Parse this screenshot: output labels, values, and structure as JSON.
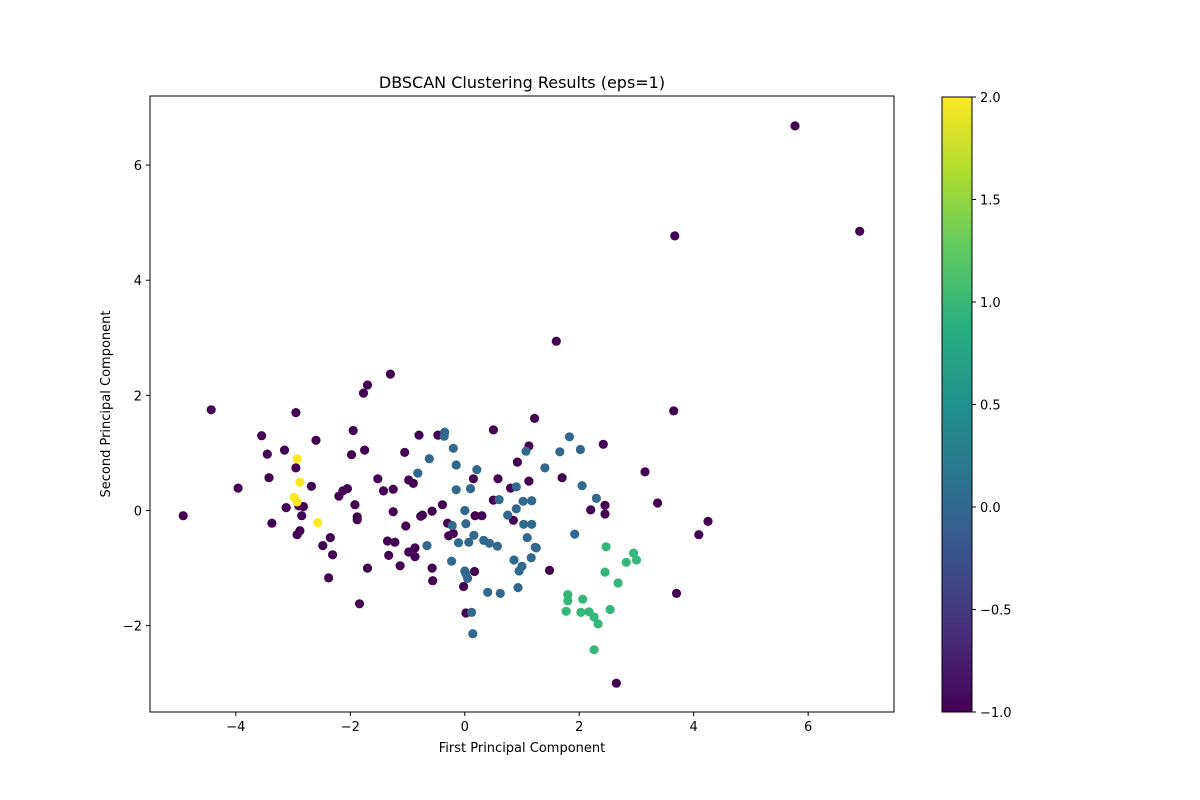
{
  "chart_data": {
    "type": "scatter",
    "title": "DBSCAN Clustering Results (eps=1)",
    "xlabel": "First Principal Component",
    "ylabel": "Second Principal Component",
    "xlim": [
      -5.5,
      7.5
    ],
    "ylim": [
      -3.5,
      7.2
    ],
    "xticks": [
      -4,
      -2,
      0,
      2,
      4,
      6
    ],
    "yticks": [
      -2,
      0,
      2,
      4,
      6
    ],
    "grid": false,
    "colormap": "viridis",
    "colorbar": {
      "range": [
        -1.0,
        2.0
      ],
      "ticks": [
        -1.0,
        -0.5,
        0.0,
        0.5,
        1.0,
        1.5,
        2.0
      ],
      "tick_labels": [
        "−1.0",
        "−0.5",
        "0.0",
        "0.5",
        "1.0",
        "1.5",
        "2.0"
      ]
    },
    "cluster_colors": {
      "-1": "#440154",
      "0": "#31688e",
      "1": "#35b779",
      "2": "#fde725"
    },
    "points": [
      {
        "x": 5.77,
        "y": 6.68,
        "label": -1
      },
      {
        "x": 3.67,
        "y": 4.77,
        "label": -1
      },
      {
        "x": 6.9,
        "y": 4.85,
        "label": -1
      },
      {
        "x": 1.6,
        "y": 2.94,
        "label": -1
      },
      {
        "x": 3.65,
        "y": 1.73,
        "label": -1
      },
      {
        "x": -4.43,
        "y": 1.75,
        "label": -1
      },
      {
        "x": -1.7,
        "y": 2.18,
        "label": -1
      },
      {
        "x": -1.77,
        "y": 2.04,
        "label": -1
      },
      {
        "x": -1.3,
        "y": 2.37,
        "label": -1
      },
      {
        "x": -2.95,
        "y": 1.7,
        "label": -1
      },
      {
        "x": -3.55,
        "y": 1.3,
        "label": -1
      },
      {
        "x": -3.45,
        "y": 0.98,
        "label": -1
      },
      {
        "x": -3.15,
        "y": 1.05,
        "label": -1
      },
      {
        "x": -2.6,
        "y": 1.22,
        "label": -1
      },
      {
        "x": -1.95,
        "y": 1.39,
        "label": -1
      },
      {
        "x": -1.98,
        "y": 0.97,
        "label": -1
      },
      {
        "x": -1.75,
        "y": 1.05,
        "label": -1
      },
      {
        "x": -1.05,
        "y": 1.01,
        "label": -1
      },
      {
        "x": -0.8,
        "y": 1.31,
        "label": -1
      },
      {
        "x": -0.47,
        "y": 1.31,
        "label": -1
      },
      {
        "x": 0.5,
        "y": 1.4,
        "label": -1
      },
      {
        "x": 1.22,
        "y": 1.6,
        "label": -1
      },
      {
        "x": 1.12,
        "y": 1.12,
        "label": -1
      },
      {
        "x": 2.42,
        "y": 1.15,
        "label": -1
      },
      {
        "x": -3.96,
        "y": 0.39,
        "label": -1
      },
      {
        "x": -3.42,
        "y": 0.57,
        "label": -1
      },
      {
        "x": -2.95,
        "y": 0.74,
        "label": -1
      },
      {
        "x": -2.68,
        "y": 0.42,
        "label": -1
      },
      {
        "x": -2.2,
        "y": 0.25,
        "label": -1
      },
      {
        "x": -2.13,
        "y": 0.34,
        "label": -1
      },
      {
        "x": -2.05,
        "y": 0.38,
        "label": -1
      },
      {
        "x": -1.92,
        "y": 0.1,
        "label": -1
      },
      {
        "x": -1.88,
        "y": -0.11,
        "label": -1
      },
      {
        "x": -1.88,
        "y": -0.16,
        "label": -1
      },
      {
        "x": -1.52,
        "y": 0.55,
        "label": -1
      },
      {
        "x": -1.42,
        "y": 0.34,
        "label": -1
      },
      {
        "x": -1.25,
        "y": 0.37,
        "label": -1
      },
      {
        "x": -0.98,
        "y": 0.53,
        "label": -1
      },
      {
        "x": -0.9,
        "y": 0.47,
        "label": -1
      },
      {
        "x": -0.39,
        "y": 0.1,
        "label": -1
      },
      {
        "x": 0.15,
        "y": 0.55,
        "label": -1
      },
      {
        "x": 0.58,
        "y": 0.55,
        "label": -1
      },
      {
        "x": 0.92,
        "y": 0.84,
        "label": -1
      },
      {
        "x": 0.8,
        "y": 0.39,
        "label": -1
      },
      {
        "x": 1.12,
        "y": 0.51,
        "label": -1
      },
      {
        "x": 1.7,
        "y": 0.57,
        "label": -1
      },
      {
        "x": 0.5,
        "y": 0.18,
        "label": -1
      },
      {
        "x": 2.2,
        "y": 0.01,
        "label": -1
      },
      {
        "x": 2.45,
        "y": 0.09,
        "label": -1
      },
      {
        "x": 2.45,
        "y": -0.06,
        "label": -1
      },
      {
        "x": 3.15,
        "y": 0.67,
        "label": -1
      },
      {
        "x": 3.37,
        "y": 0.13,
        "label": -1
      },
      {
        "x": 4.25,
        "y": -0.19,
        "label": -1
      },
      {
        "x": 4.09,
        "y": -0.42,
        "label": -1
      },
      {
        "x": 3.7,
        "y": -1.44,
        "label": -1
      },
      {
        "x": -4.92,
        "y": -0.09,
        "label": -1
      },
      {
        "x": -3.37,
        "y": -0.22,
        "label": -1
      },
      {
        "x": -3.12,
        "y": 0.05,
        "label": -1
      },
      {
        "x": -2.9,
        "y": 0.08,
        "label": -1
      },
      {
        "x": -2.82,
        "y": 0.07,
        "label": -1
      },
      {
        "x": -2.85,
        "y": -0.09,
        "label": -1
      },
      {
        "x": -2.88,
        "y": -0.35,
        "label": -1
      },
      {
        "x": -2.93,
        "y": -0.42,
        "label": -1
      },
      {
        "x": -2.35,
        "y": -0.47,
        "label": -1
      },
      {
        "x": -2.48,
        "y": -0.61,
        "label": -1
      },
      {
        "x": -2.31,
        "y": -0.77,
        "label": -1
      },
      {
        "x": -2.38,
        "y": -1.17,
        "label": -1
      },
      {
        "x": -1.7,
        "y": -1.0,
        "label": -1
      },
      {
        "x": -1.84,
        "y": -1.62,
        "label": -1
      },
      {
        "x": -1.35,
        "y": -0.53,
        "label": -1
      },
      {
        "x": -1.25,
        "y": -0.02,
        "label": -1
      },
      {
        "x": -1.22,
        "y": -0.55,
        "label": -1
      },
      {
        "x": -1.33,
        "y": -0.78,
        "label": -1
      },
      {
        "x": -1.13,
        "y": -0.96,
        "label": -1
      },
      {
        "x": -1.03,
        "y": -0.27,
        "label": -1
      },
      {
        "x": -0.98,
        "y": -0.72,
        "label": -1
      },
      {
        "x": -0.87,
        "y": -0.65,
        "label": -1
      },
      {
        "x": -0.87,
        "y": -0.8,
        "label": -1
      },
      {
        "x": -0.77,
        "y": -0.1,
        "label": -1
      },
      {
        "x": -0.74,
        "y": -0.08,
        "label": -1
      },
      {
        "x": -0.57,
        "y": -0.01,
        "label": -1
      },
      {
        "x": -0.57,
        "y": -1.0,
        "label": -1
      },
      {
        "x": -0.56,
        "y": -1.22,
        "label": -1
      },
      {
        "x": -0.3,
        "y": -0.22,
        "label": -1
      },
      {
        "x": -0.28,
        "y": -0.44,
        "label": -1
      },
      {
        "x": -0.2,
        "y": -0.4,
        "label": -1
      },
      {
        "x": -0.02,
        "y": -1.32,
        "label": -1
      },
      {
        "x": 0.02,
        "y": -1.78,
        "label": -1
      },
      {
        "x": 0.18,
        "y": -0.09,
        "label": -1
      },
      {
        "x": 0.3,
        "y": -0.09,
        "label": -1
      },
      {
        "x": 0.17,
        "y": -1.06,
        "label": -1
      },
      {
        "x": 0.85,
        "y": -0.17,
        "label": -1
      },
      {
        "x": 1.48,
        "y": -1.04,
        "label": -1
      },
      {
        "x": 2.65,
        "y": -3.0,
        "label": -1
      },
      {
        "x": -0.35,
        "y": 1.36,
        "label": 0
      },
      {
        "x": -0.36,
        "y": 1.29,
        "label": 0
      },
      {
        "x": -0.2,
        "y": 1.08,
        "label": 0
      },
      {
        "x": -0.62,
        "y": 0.9,
        "label": 0
      },
      {
        "x": -0.82,
        "y": 0.65,
        "label": 0
      },
      {
        "x": -0.15,
        "y": 0.79,
        "label": 0
      },
      {
        "x": 0.21,
        "y": 0.71,
        "label": 0
      },
      {
        "x": 0.1,
        "y": 0.38,
        "label": 0
      },
      {
        "x": -0.15,
        "y": 0.36,
        "label": 0
      },
      {
        "x": 0.6,
        "y": 0.19,
        "label": 0
      },
      {
        "x": 0.9,
        "y": 0.41,
        "label": 0
      },
      {
        "x": 1.07,
        "y": 1.03,
        "label": 0
      },
      {
        "x": 1.4,
        "y": 0.74,
        "label": 0
      },
      {
        "x": 1.66,
        "y": 1.02,
        "label": 0
      },
      {
        "x": 1.83,
        "y": 1.28,
        "label": 0
      },
      {
        "x": 2.02,
        "y": 1.06,
        "label": 0
      },
      {
        "x": 2.05,
        "y": 0.43,
        "label": 0
      },
      {
        "x": 2.3,
        "y": 0.21,
        "label": 0
      },
      {
        "x": 1.02,
        "y": 0.16,
        "label": 0
      },
      {
        "x": 1.17,
        "y": 0.17,
        "label": 0
      },
      {
        "x": 0.9,
        "y": 0.03,
        "label": 0
      },
      {
        "x": 0.75,
        "y": -0.08,
        "label": 0
      },
      {
        "x": 0.0,
        "y": 0.0,
        "label": 0
      },
      {
        "x": 1.03,
        "y": -0.24,
        "label": 0
      },
      {
        "x": 1.17,
        "y": -0.24,
        "label": 0
      },
      {
        "x": 1.09,
        "y": -0.47,
        "label": 0
      },
      {
        "x": 1.25,
        "y": -0.65,
        "label": 0
      },
      {
        "x": 1.23,
        "y": -0.64,
        "label": 0
      },
      {
        "x": 1.16,
        "y": -0.82,
        "label": 0
      },
      {
        "x": 0.86,
        "y": -0.86,
        "label": 0
      },
      {
        "x": 1.0,
        "y": -0.97,
        "label": 0
      },
      {
        "x": 0.95,
        "y": -1.05,
        "label": 0
      },
      {
        "x": 1.92,
        "y": -0.41,
        "label": 0
      },
      {
        "x": -0.22,
        "y": -0.26,
        "label": 0
      },
      {
        "x": -0.11,
        "y": -0.56,
        "label": 0
      },
      {
        "x": 0.02,
        "y": -0.23,
        "label": 0
      },
      {
        "x": 0.07,
        "y": -0.55,
        "label": 0
      },
      {
        "x": 0.16,
        "y": -0.43,
        "label": 0
      },
      {
        "x": 0.33,
        "y": -0.52,
        "label": 0
      },
      {
        "x": 0.43,
        "y": -0.57,
        "label": 0
      },
      {
        "x": 0.57,
        "y": -0.62,
        "label": 0
      },
      {
        "x": -0.66,
        "y": -0.61,
        "label": 0
      },
      {
        "x": -0.23,
        "y": -0.88,
        "label": 0
      },
      {
        "x": 0.0,
        "y": -1.05,
        "label": 0
      },
      {
        "x": 0.02,
        "y": -1.1,
        "label": 0
      },
      {
        "x": 0.05,
        "y": -1.18,
        "label": 0
      },
      {
        "x": 0.4,
        "y": -1.42,
        "label": 0
      },
      {
        "x": 0.62,
        "y": -1.44,
        "label": 0
      },
      {
        "x": 0.93,
        "y": -1.34,
        "label": 0
      },
      {
        "x": 0.12,
        "y": -1.77,
        "label": 0
      },
      {
        "x": 0.14,
        "y": -2.14,
        "label": 0
      },
      {
        "x": 2.47,
        "y": -0.63,
        "label": 1
      },
      {
        "x": 2.95,
        "y": -0.74,
        "label": 1
      },
      {
        "x": 3.0,
        "y": -0.86,
        "label": 1
      },
      {
        "x": 2.82,
        "y": -0.9,
        "label": 1
      },
      {
        "x": 2.45,
        "y": -1.07,
        "label": 1
      },
      {
        "x": 2.68,
        "y": -1.26,
        "label": 1
      },
      {
        "x": 1.8,
        "y": -1.46,
        "label": 1
      },
      {
        "x": 1.8,
        "y": -1.57,
        "label": 1
      },
      {
        "x": 2.06,
        "y": -1.54,
        "label": 1
      },
      {
        "x": 2.54,
        "y": -1.72,
        "label": 1
      },
      {
        "x": 1.77,
        "y": -1.75,
        "label": 1
      },
      {
        "x": 2.03,
        "y": -1.77,
        "label": 1
      },
      {
        "x": 2.17,
        "y": -1.76,
        "label": 1
      },
      {
        "x": 2.26,
        "y": -1.85,
        "label": 1
      },
      {
        "x": 2.33,
        "y": -1.97,
        "label": 1
      },
      {
        "x": 2.26,
        "y": -2.42,
        "label": 1
      },
      {
        "x": -2.93,
        "y": 0.9,
        "label": 2
      },
      {
        "x": -2.88,
        "y": 0.49,
        "label": 2
      },
      {
        "x": -2.98,
        "y": 0.23,
        "label": 2
      },
      {
        "x": -2.93,
        "y": 0.15,
        "label": 2
      },
      {
        "x": -2.57,
        "y": -0.21,
        "label": 2
      }
    ]
  }
}
